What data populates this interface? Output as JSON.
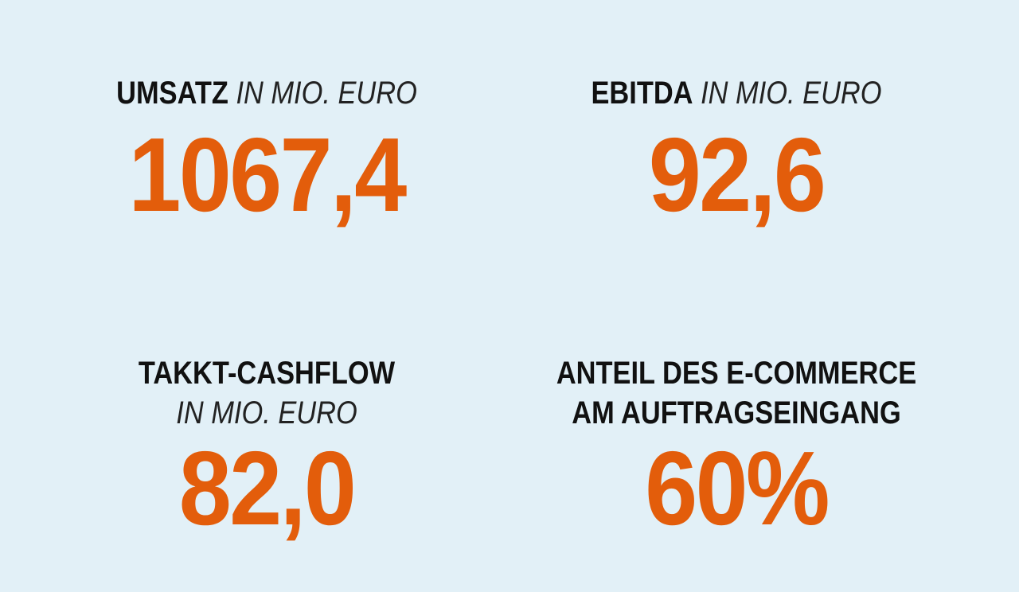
{
  "kpis": [
    {
      "label": "UMSATZ",
      "unit": "IN MIO. EURO",
      "value": "1067,4"
    },
    {
      "label": "EBITDA",
      "unit": "IN MIO. EURO",
      "value": "92,6"
    },
    {
      "label": "TAKKT-CASHFLOW",
      "unit": "IN MIO. EURO",
      "value": "82,0"
    },
    {
      "label_lines": [
        "ANTEIL DES E-COMMERCE",
        "AM AUFTRAGSEINGANG"
      ],
      "value": "60%"
    }
  ]
}
